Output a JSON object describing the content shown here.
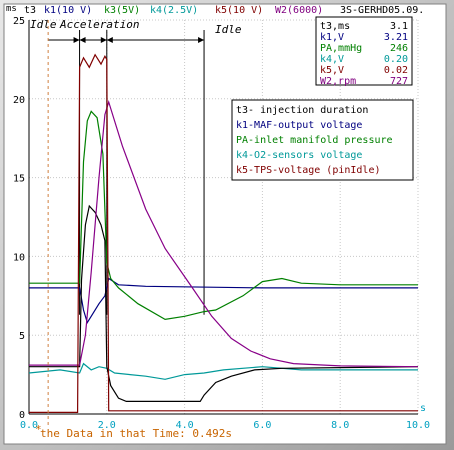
{
  "header": {
    "t3": "t3",
    "k1": "k1(10 V)",
    "k3": "k3(5V)",
    "k4": "k4(2.5V)",
    "k5": "k5(10 V)",
    "w2": "W2(6000)",
    "file": "3S-GERHD05.09."
  },
  "phases": {
    "idle1": "Idle",
    "accel": "Acceleration",
    "idle2": "Idle"
  },
  "readout": [
    {
      "label": "t3,ms",
      "value": "3.1",
      "color": "#000000"
    },
    {
      "label": "k1,V",
      "value": "3.21",
      "color": "#000080"
    },
    {
      "label": "PA,mmHg",
      "value": "246",
      "color": "#008000"
    },
    {
      "label": "k4,V",
      "value": "0.20",
      "color": "#009999"
    },
    {
      "label": "k5,V",
      "value": "0.02",
      "color": "#800000"
    },
    {
      "label": "W2,rpm",
      "value": "727",
      "color": "#800080"
    }
  ],
  "legend": [
    {
      "text": "t3- injection duration",
      "color": "#000000"
    },
    {
      "text": "k1-MAF-output voltage",
      "color": "#000080"
    },
    {
      "text": "PA-inlet manifold pressure",
      "color": "#008000"
    },
    {
      "text": "k4-O2-sensors voltage",
      "color": "#009999"
    },
    {
      "text": "k5-TPS-voltage (pinIdle)",
      "color": "#800000"
    }
  ],
  "cursor_text": "the Data in that Time: 0.492s",
  "chart_data": {
    "type": "line",
    "xlabel": "s",
    "ylabel": "ms",
    "xlim": [
      0,
      10
    ],
    "ylim": [
      0,
      25
    ],
    "x_ticks": [
      "0.0",
      "2.0",
      "4.0",
      "6.0",
      "8.0",
      "10.0"
    ],
    "y_ticks": [
      "0",
      "5",
      "10",
      "15",
      "20",
      "25"
    ],
    "grid": true,
    "cursor_x": 0.492,
    "markers_x": [
      1.3,
      2.0,
      4.5
    ],
    "colors": {
      "t3": "#000000",
      "k1": "#000080",
      "pa": "#008000",
      "k4": "#009999",
      "k5": "#800000",
      "w2": "#880088"
    },
    "series": {
      "k1": [
        [
          0,
          8.0
        ],
        [
          1.3,
          8.0
        ],
        [
          1.4,
          6.6
        ],
        [
          1.5,
          5.8
        ],
        [
          1.6,
          6.2
        ],
        [
          1.8,
          7.0
        ],
        [
          1.95,
          7.5
        ],
        [
          2.05,
          8.6
        ],
        [
          2.3,
          8.2
        ],
        [
          3,
          8.1
        ],
        [
          6,
          8.0
        ],
        [
          8,
          8.0
        ],
        [
          10,
          8.0
        ]
      ],
      "pa": [
        [
          0,
          8.3
        ],
        [
          1.3,
          8.3
        ],
        [
          1.4,
          16.0
        ],
        [
          1.5,
          18.6
        ],
        [
          1.6,
          19.2
        ],
        [
          1.75,
          18.8
        ],
        [
          1.9,
          16.5
        ],
        [
          2.0,
          9.6
        ],
        [
          2.1,
          8.6
        ],
        [
          2.3,
          8.0
        ],
        [
          2.8,
          7.0
        ],
        [
          3.5,
          6.0
        ],
        [
          4.0,
          6.2
        ],
        [
          4.5,
          6.5
        ],
        [
          4.8,
          6.6
        ],
        [
          5.5,
          7.5
        ],
        [
          6.0,
          8.4
        ],
        [
          6.5,
          8.6
        ],
        [
          7.0,
          8.3
        ],
        [
          8.0,
          8.2
        ],
        [
          10.0,
          8.2
        ]
      ],
      "k4": [
        [
          0,
          2.6
        ],
        [
          0.8,
          2.8
        ],
        [
          1.3,
          2.6
        ],
        [
          1.4,
          3.2
        ],
        [
          1.6,
          2.8
        ],
        [
          1.8,
          3.0
        ],
        [
          2.0,
          2.9
        ],
        [
          2.2,
          2.6
        ],
        [
          2.6,
          2.5
        ],
        [
          3.0,
          2.4
        ],
        [
          3.5,
          2.2
        ],
        [
          4.0,
          2.5
        ],
        [
          4.5,
          2.6
        ],
        [
          5.0,
          2.8
        ],
        [
          6.0,
          3.0
        ],
        [
          7.0,
          2.8
        ],
        [
          8.0,
          2.8
        ],
        [
          10.0,
          2.8
        ]
      ],
      "t3": [
        [
          0,
          3.0
        ],
        [
          1.3,
          3.0
        ],
        [
          1.35,
          8.5
        ],
        [
          1.45,
          12.0
        ],
        [
          1.55,
          13.2
        ],
        [
          1.7,
          12.8
        ],
        [
          1.85,
          12.0
        ],
        [
          1.95,
          11.0
        ],
        [
          2.0,
          3.0
        ],
        [
          2.1,
          1.8
        ],
        [
          2.3,
          1.0
        ],
        [
          2.5,
          0.8
        ],
        [
          4.4,
          0.8
        ],
        [
          4.5,
          1.2
        ],
        [
          4.8,
          2.0
        ],
        [
          5.2,
          2.4
        ],
        [
          5.8,
          2.8
        ],
        [
          6.5,
          2.9
        ],
        [
          10.0,
          3.0
        ]
      ],
      "k5": [
        [
          0,
          0.1
        ],
        [
          1.25,
          0.1
        ],
        [
          1.3,
          22.0
        ],
        [
          1.4,
          22.6
        ],
        [
          1.55,
          22.0
        ],
        [
          1.7,
          22.8
        ],
        [
          1.85,
          22.2
        ],
        [
          1.95,
          22.7
        ],
        [
          2.0,
          22.5
        ],
        [
          2.05,
          0.2
        ],
        [
          10.0,
          0.2
        ]
      ],
      "w2": [
        [
          0,
          3.1
        ],
        [
          1.3,
          3.1
        ],
        [
          1.45,
          5.0
        ],
        [
          1.6,
          9.0
        ],
        [
          1.8,
          15.0
        ],
        [
          1.95,
          19.0
        ],
        [
          2.05,
          19.8
        ],
        [
          2.4,
          17.0
        ],
        [
          3.0,
          13.0
        ],
        [
          3.5,
          10.5
        ],
        [
          4.2,
          8.0
        ],
        [
          4.7,
          6.2
        ],
        [
          5.2,
          4.8
        ],
        [
          5.7,
          4.0
        ],
        [
          6.2,
          3.5
        ],
        [
          6.8,
          3.2
        ],
        [
          8.0,
          3.05
        ],
        [
          10.0,
          3.0
        ]
      ]
    },
    "legend_placement": "center-right"
  }
}
